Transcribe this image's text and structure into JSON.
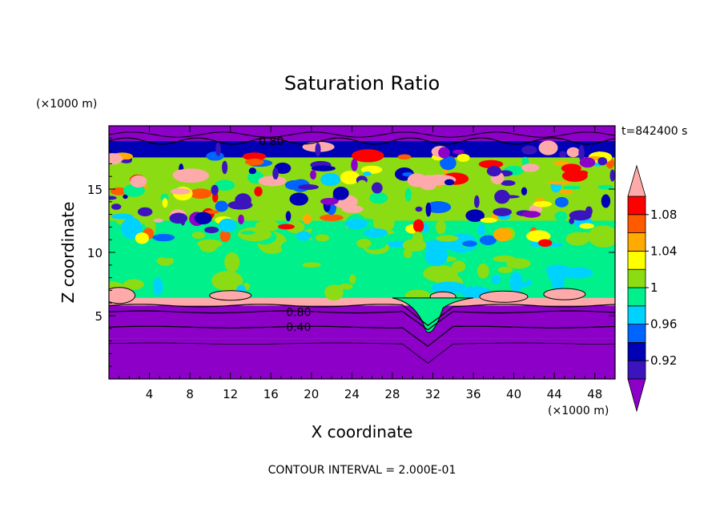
{
  "chart_data": {
    "type": "heatmap",
    "title": "Saturation Ratio",
    "xlabel": "X coordinate",
    "ylabel": "Z coordinate",
    "x_unit": "(×1000 m)",
    "y_unit": "(×1000 m)",
    "time_label": "t=842400 s",
    "footer": "CONTOUR INTERVAL = 2.000E-01",
    "xlim": [
      0,
      50
    ],
    "ylim": [
      0,
      20
    ],
    "x_ticks": [
      4,
      8,
      12,
      16,
      20,
      24,
      28,
      32,
      36,
      40,
      44,
      48
    ],
    "y_ticks": [
      5,
      10,
      15
    ],
    "colorbar": {
      "levels": [
        0.9,
        0.92,
        0.94,
        0.96,
        0.98,
        1.0,
        1.02,
        1.04,
        1.06,
        1.08,
        1.1
      ],
      "labels": [
        "0.92",
        "0.96",
        "1",
        "1.04",
        "1.08"
      ],
      "label_values": [
        0.92,
        0.96,
        1.0,
        1.04,
        1.08
      ],
      "colors": [
        "#8c00c8",
        "#3c14be",
        "#0000b4",
        "#0064ff",
        "#00d2ff",
        "#00f08c",
        "#8cdc14",
        "#ffff00",
        "#ffaa00",
        "#ff5a00",
        "#ff0000",
        "#ffaaaa"
      ],
      "extend": "both"
    },
    "contour_labels": [
      {
        "text": "0.80",
        "x": 14.8,
        "z": 18.8
      },
      {
        "text": "0.80",
        "x": 17.5,
        "z": 5.3
      },
      {
        "text": "0.40",
        "x": 17.5,
        "z": 4.1
      }
    ],
    "bands": [
      {
        "z": [
          0,
          3.2
        ],
        "value": 0.5
      },
      {
        "z": [
          3.2,
          5.8
        ],
        "value": 0.7
      },
      {
        "z": [
          5.8,
          6.4
        ],
        "value": 1.1
      },
      {
        "z": [
          6.4,
          12.5
        ],
        "value": 0.99
      },
      {
        "z": [
          12.5,
          17.5
        ],
        "value": 1.01
      },
      {
        "z": [
          17.5,
          18.8
        ],
        "value": 0.93
      },
      {
        "z": [
          18.8,
          20
        ],
        "value": 0.6
      }
    ]
  }
}
